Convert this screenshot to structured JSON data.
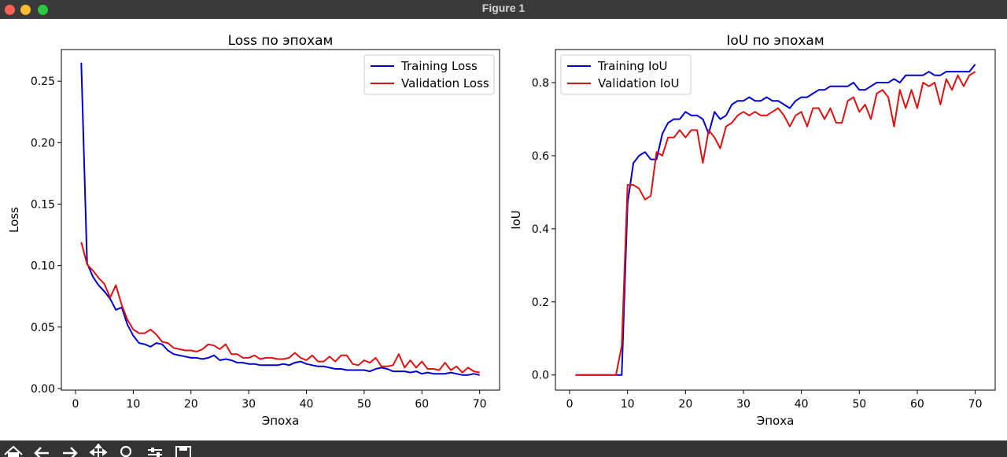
{
  "window": {
    "title": "Figure 1"
  },
  "toolbar": {
    "icons": [
      "home-icon",
      "back-arrow-icon",
      "forward-arrow-icon",
      "pan-icon",
      "zoom-icon",
      "configure-subplots-icon",
      "save-icon"
    ]
  },
  "chart_data": [
    {
      "type": "line",
      "title": "Loss по эпохам",
      "xlabel": "Эпоха",
      "ylabel": "Loss",
      "xlim": [
        -2.45,
        73.45
      ],
      "ylim": [
        -0.0013,
        0.2757
      ],
      "xticks": [
        0,
        10,
        20,
        30,
        40,
        50,
        60,
        70
      ],
      "yticks": [
        0.0,
        0.05,
        0.1,
        0.15,
        0.2,
        0.25
      ],
      "yticks_labels": [
        "0.00",
        "0.05",
        "0.10",
        "0.15",
        "0.20",
        "0.25"
      ],
      "legend_position": "upper right",
      "x": [
        1,
        2,
        3,
        4,
        5,
        6,
        7,
        8,
        9,
        10,
        11,
        12,
        13,
        14,
        15,
        16,
        17,
        18,
        19,
        20,
        21,
        22,
        23,
        24,
        25,
        26,
        27,
        28,
        29,
        30,
        31,
        32,
        33,
        34,
        35,
        36,
        37,
        38,
        39,
        40,
        41,
        42,
        43,
        44,
        45,
        46,
        47,
        48,
        49,
        50,
        51,
        52,
        53,
        54,
        55,
        56,
        57,
        58,
        59,
        60,
        61,
        62,
        63,
        64,
        65,
        66,
        67,
        68,
        69,
        70
      ],
      "series": [
        {
          "name": "Training Loss",
          "color": "#0000cc",
          "values": [
            0.265,
            0.102,
            0.091,
            0.084,
            0.079,
            0.073,
            0.064,
            0.066,
            0.052,
            0.043,
            0.037,
            0.036,
            0.034,
            0.037,
            0.036,
            0.031,
            0.028,
            0.027,
            0.026,
            0.025,
            0.025,
            0.024,
            0.025,
            0.027,
            0.023,
            0.024,
            0.023,
            0.021,
            0.021,
            0.02,
            0.02,
            0.019,
            0.019,
            0.019,
            0.019,
            0.02,
            0.019,
            0.021,
            0.022,
            0.02,
            0.019,
            0.018,
            0.018,
            0.017,
            0.016,
            0.016,
            0.015,
            0.015,
            0.015,
            0.015,
            0.014,
            0.016,
            0.017,
            0.016,
            0.014,
            0.014,
            0.014,
            0.013,
            0.014,
            0.012,
            0.013,
            0.012,
            0.012,
            0.012,
            0.013,
            0.012,
            0.011,
            0.011,
            0.012,
            0.011
          ]
        },
        {
          "name": "Validation Loss",
          "color": "#dd1111",
          "values": [
            0.119,
            0.101,
            0.096,
            0.09,
            0.085,
            0.074,
            0.084,
            0.068,
            0.056,
            0.048,
            0.045,
            0.045,
            0.048,
            0.044,
            0.038,
            0.037,
            0.033,
            0.032,
            0.031,
            0.031,
            0.03,
            0.032,
            0.036,
            0.035,
            0.032,
            0.036,
            0.028,
            0.028,
            0.025,
            0.025,
            0.027,
            0.024,
            0.025,
            0.025,
            0.024,
            0.024,
            0.025,
            0.029,
            0.025,
            0.023,
            0.027,
            0.022,
            0.022,
            0.026,
            0.022,
            0.027,
            0.027,
            0.02,
            0.019,
            0.023,
            0.021,
            0.025,
            0.018,
            0.018,
            0.019,
            0.028,
            0.017,
            0.023,
            0.017,
            0.022,
            0.016,
            0.016,
            0.015,
            0.021,
            0.015,
            0.018,
            0.013,
            0.017,
            0.014,
            0.013
          ]
        }
      ]
    },
    {
      "type": "line",
      "title": "IoU по эпохам",
      "xlabel": "Эпоха",
      "ylabel": "IoU",
      "xlim": [
        -2.45,
        73.45
      ],
      "ylim": [
        -0.0415,
        0.8904
      ],
      "xticks": [
        0,
        10,
        20,
        30,
        40,
        50,
        60,
        70
      ],
      "yticks": [
        0.0,
        0.2,
        0.4,
        0.6,
        0.8
      ],
      "yticks_labels": [
        "0.0",
        "0.2",
        "0.4",
        "0.6",
        "0.8"
      ],
      "legend_position": "upper left",
      "x": [
        1,
        2,
        3,
        4,
        5,
        6,
        7,
        8,
        9,
        10,
        11,
        12,
        13,
        14,
        15,
        16,
        17,
        18,
        19,
        20,
        21,
        22,
        23,
        24,
        25,
        26,
        27,
        28,
        29,
        30,
        31,
        32,
        33,
        34,
        35,
        36,
        37,
        38,
        39,
        40,
        41,
        42,
        43,
        44,
        45,
        46,
        47,
        48,
        49,
        50,
        51,
        52,
        53,
        54,
        55,
        56,
        57,
        58,
        59,
        60,
        61,
        62,
        63,
        64,
        65,
        66,
        67,
        68,
        69,
        70
      ],
      "series": [
        {
          "name": "Training IoU",
          "color": "#0000cc",
          "values": [
            0.0,
            0.0,
            0.0,
            0.0,
            0.0,
            0.0,
            0.0,
            0.0,
            0.0,
            0.47,
            0.58,
            0.6,
            0.61,
            0.59,
            0.59,
            0.66,
            0.69,
            0.7,
            0.7,
            0.72,
            0.71,
            0.71,
            0.7,
            0.66,
            0.72,
            0.7,
            0.71,
            0.74,
            0.75,
            0.75,
            0.76,
            0.75,
            0.75,
            0.76,
            0.75,
            0.75,
            0.74,
            0.73,
            0.75,
            0.76,
            0.76,
            0.77,
            0.78,
            0.78,
            0.79,
            0.79,
            0.79,
            0.79,
            0.8,
            0.78,
            0.78,
            0.79,
            0.8,
            0.8,
            0.8,
            0.81,
            0.8,
            0.82,
            0.82,
            0.82,
            0.82,
            0.83,
            0.82,
            0.82,
            0.83,
            0.83,
            0.83,
            0.83,
            0.83,
            0.85
          ]
        },
        {
          "name": "Validation IoU",
          "color": "#dd1111",
          "values": [
            0.0,
            0.0,
            0.0,
            0.0,
            0.0,
            0.0,
            0.0,
            0.0,
            0.08,
            0.52,
            0.52,
            0.51,
            0.48,
            0.49,
            0.61,
            0.6,
            0.65,
            0.65,
            0.67,
            0.65,
            0.67,
            0.67,
            0.58,
            0.67,
            0.65,
            0.62,
            0.68,
            0.69,
            0.71,
            0.72,
            0.71,
            0.72,
            0.71,
            0.71,
            0.72,
            0.73,
            0.71,
            0.68,
            0.71,
            0.72,
            0.68,
            0.73,
            0.73,
            0.7,
            0.73,
            0.69,
            0.69,
            0.75,
            0.76,
            0.72,
            0.74,
            0.7,
            0.77,
            0.78,
            0.76,
            0.68,
            0.78,
            0.73,
            0.78,
            0.73,
            0.8,
            0.79,
            0.8,
            0.74,
            0.81,
            0.78,
            0.82,
            0.79,
            0.82,
            0.83
          ]
        }
      ]
    }
  ]
}
